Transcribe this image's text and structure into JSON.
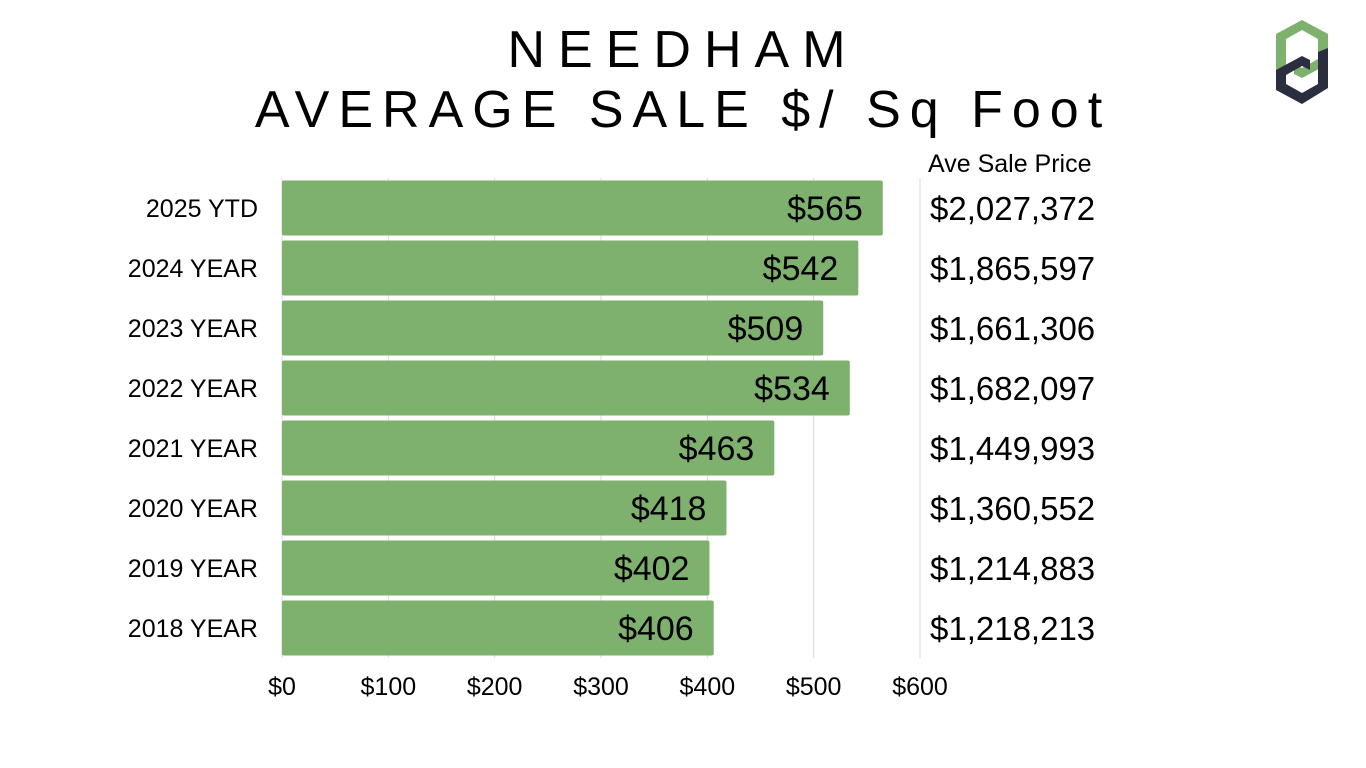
{
  "title_line1": "NEEDHAM",
  "title_line2": "AVERAGE SALE $/ Sq Foot",
  "colors": {
    "bar": "#7eb06e",
    "grid": "#d9d9d9",
    "logo_green": "#7eb06e",
    "logo_dark": "#2b2e3f"
  },
  "icons": {
    "logo": "company-logo"
  },
  "price_table": {
    "header": "Ave Sale Price",
    "values": [
      "$2,027,372",
      "$1,865,597",
      "$1,661,306",
      "$1,682,097",
      "$1,449,993",
      "$1,360,552",
      "$1,214,883",
      "$1,218,213"
    ]
  },
  "chart_data": {
    "type": "bar",
    "orientation": "horizontal",
    "title": "NEEDHAM AVERAGE SALE $/ Sq Foot",
    "categories": [
      "2025 YTD",
      "2024 YEAR",
      "2023 YEAR",
      "2022 YEAR",
      "2021 YEAR",
      "2020 YEAR",
      "2019 YEAR",
      "2018 YEAR"
    ],
    "values": [
      565,
      542,
      509,
      534,
      463,
      418,
      402,
      406
    ],
    "data_labels": [
      "$565",
      "$542",
      "$509",
      "$534",
      "$463",
      "$418",
      "$402",
      "$406"
    ],
    "xlim": [
      0,
      600
    ],
    "x_ticks": [
      0,
      100,
      200,
      300,
      400,
      500,
      600
    ],
    "x_tick_labels": [
      "$0",
      "$100",
      "$200",
      "$300",
      "$400",
      "$500",
      "$600"
    ],
    "grid": true,
    "legend": "none"
  }
}
